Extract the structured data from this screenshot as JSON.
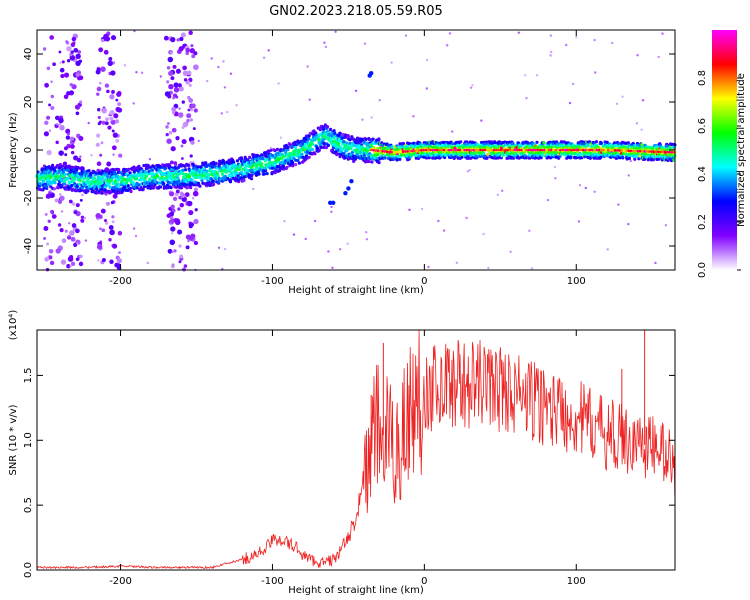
{
  "title": "GN02.2023.218.05.59.R05",
  "chart_data": [
    {
      "type": "heatmap",
      "xlabel": "Height of straight line (km)",
      "ylabel": "Frequency (Hz)",
      "xlim": [
        -255,
        165
      ],
      "ylim": [
        -50,
        50
      ],
      "x_ticks": [
        -200,
        -100,
        0,
        100
      ],
      "y_ticks": [
        -40,
        -20,
        0,
        20,
        40
      ],
      "colorbar": {
        "label": "Normalized spectral amplitude",
        "range": [
          0,
          1
        ],
        "ticks": [
          "0.0",
          "0.2",
          "0.4",
          "0.6",
          "0.8"
        ],
        "colors": [
          "#ffffff",
          "#8000ff",
          "#0000ff",
          "#00ffff",
          "#00ff00",
          "#ffff00",
          "#ff0000",
          "#ff00ff"
        ]
      },
      "ridge": {
        "x": [
          -255,
          -240,
          -220,
          -200,
          -180,
          -160,
          -140,
          -120,
          -100,
          -80,
          -65,
          -55,
          -45,
          -35,
          -20,
          0,
          40,
          80,
          120,
          165
        ],
        "y": [
          -12,
          -11,
          -13,
          -13,
          -11,
          -11,
          -10,
          -8,
          -5,
          0,
          6,
          2,
          0,
          0,
          -1,
          0,
          0,
          0,
          0,
          -1
        ]
      }
    },
    {
      "type": "line",
      "xlabel": "Height of straight line (km)",
      "ylabel": "SNR (10 * v/v)",
      "y_multiplier": "(x10⁴)",
      "xlim": [
        -255,
        165
      ],
      "ylim": [
        0,
        1.85
      ],
      "x_ticks": [
        -200,
        -100,
        0,
        100
      ],
      "y_ticks": [
        "0.0",
        "0.5",
        "1.0",
        "1.5"
      ],
      "series": [
        {
          "color": "#ee2222",
          "x": [
            -255,
            -240,
            -220,
            -200,
            -180,
            -160,
            -140,
            -130,
            -120,
            -110,
            -100,
            -95,
            -90,
            -85,
            -80,
            -75,
            -70,
            -65,
            -60,
            -55,
            -50,
            -45,
            -40,
            -35,
            -30,
            -25,
            -20,
            -15,
            -10,
            -5,
            0,
            10,
            20,
            30,
            40,
            50,
            60,
            70,
            80,
            90,
            100,
            110,
            120,
            130,
            140,
            150,
            160,
            165
          ],
          "y": [
            0.02,
            0.02,
            0.02,
            0.03,
            0.02,
            0.02,
            0.02,
            0.05,
            0.08,
            0.12,
            0.22,
            0.25,
            0.2,
            0.18,
            0.12,
            0.08,
            0.06,
            0.06,
            0.08,
            0.15,
            0.25,
            0.4,
            0.7,
            0.95,
            1.1,
            1.0,
            0.9,
            1.05,
            1.2,
            1.3,
            1.38,
            1.43,
            1.45,
            1.42,
            1.44,
            1.4,
            1.36,
            1.3,
            1.27,
            1.22,
            1.18,
            1.12,
            1.05,
            1.02,
            0.98,
            0.95,
            0.9,
            0.75
          ]
        }
      ],
      "spikes": [
        {
          "x": -27,
          "y": 1.75
        },
        {
          "x": 145,
          "y": 1.85
        },
        {
          "x": -35,
          "y": 1.35
        },
        {
          "x": 130,
          "y": 1.55
        }
      ]
    }
  ]
}
